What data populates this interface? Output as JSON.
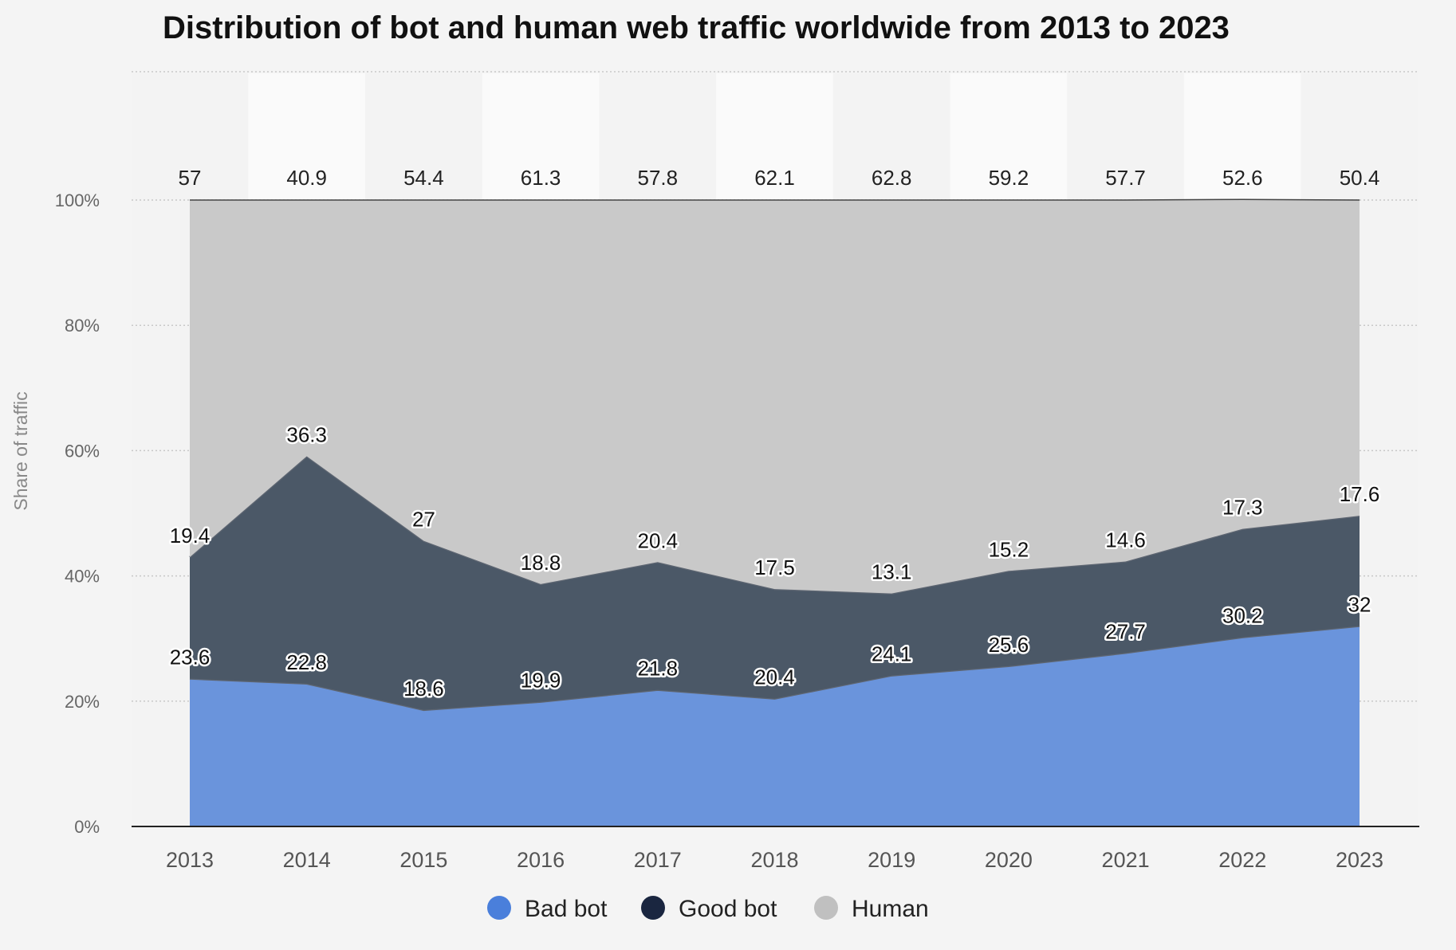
{
  "chart_data": {
    "type": "area",
    "stacked": true,
    "title": "Distribution of bot and human web traffic worldwide from 2013 to 2023",
    "ylabel": "Share of traffic",
    "xlabel": "",
    "ylim": [
      0,
      100
    ],
    "y_ticks": [
      "0%",
      "20%",
      "40%",
      "60%",
      "80%",
      "100%"
    ],
    "y_tick_values": [
      0,
      20,
      40,
      60,
      80,
      100
    ],
    "grid": true,
    "legend_position": "bottom",
    "categories": [
      "2013",
      "2014",
      "2015",
      "2016",
      "2017",
      "2018",
      "2019",
      "2020",
      "2021",
      "2022",
      "2023"
    ],
    "series": [
      {
        "name": "Bad bot",
        "color": "#6a94dc",
        "legend_color": "#4a7fdb",
        "values": [
          23.6,
          22.8,
          18.6,
          19.9,
          21.8,
          20.4,
          24.1,
          25.6,
          27.7,
          30.2,
          32
        ]
      },
      {
        "name": "Good bot",
        "color": "#4b5867",
        "legend_color": "#1a2640",
        "values": [
          19.4,
          36.3,
          27,
          18.8,
          20.4,
          17.5,
          13.1,
          15.2,
          14.6,
          17.3,
          17.6
        ]
      },
      {
        "name": "Human",
        "color": "#c9c9c9",
        "legend_color": "#c0c0c0",
        "values": [
          57,
          40.9,
          54.4,
          61.3,
          57.8,
          62.1,
          62.8,
          59.2,
          57.7,
          52.6,
          50.4
        ]
      }
    ]
  }
}
